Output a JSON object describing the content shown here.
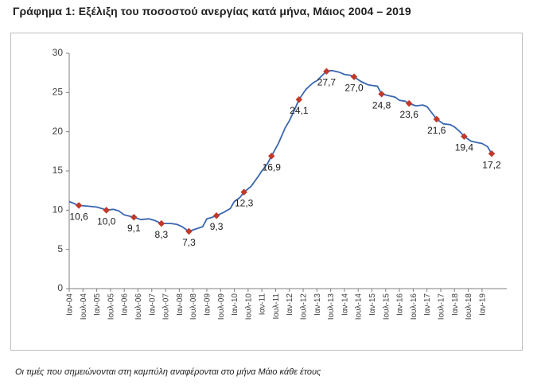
{
  "header": {
    "title": "Γράφημα 1: Εξέλιξη του ποσοστού ανεργίας κατά μήνα, Μάιος 2004 – 2019"
  },
  "footer": {
    "note": "Οι τιμές που σημειώνονται στη καμπύλη αναφέρονται στο μήνα Μάιο κάθε έτους"
  },
  "colors": {
    "line": "#3a66b0",
    "marker": "#c0392b",
    "axis": "#7f7f7f",
    "tick_text": "#404040"
  },
  "chart_data": {
    "type": "line",
    "title": "",
    "xlabel": "",
    "ylabel": "",
    "ylim": [
      0,
      30
    ],
    "yticks": [
      0,
      5,
      10,
      15,
      20,
      25,
      30
    ],
    "grid": false,
    "legend": "none",
    "x_start": "2004-01",
    "x_end": "2019-12",
    "x_tick_labels": [
      "Ιαν-04",
      "Ιουλ-04",
      "Ιαν-05",
      "Ιουλ-05",
      "Ιαν-06",
      "Ιουλ-06",
      "Ιαν-07",
      "Ιουλ-07",
      "Ιαν-08",
      "Ιουλ-08",
      "Ιαν-09",
      "Ιουλ-09",
      "Ιαν-10",
      "Ιουλ-10",
      "Ιαν-11",
      "Ιουλ-11",
      "Ιαν-12",
      "Ιουλ-12",
      "Ιαν-13",
      "Ιουλ-13",
      "Ιαν-14",
      "Ιουλ-14",
      "Ιαν-15",
      "Ιουλ-15",
      "Ιαν-16",
      "Ιουλ-16",
      "Ιαν-17",
      "Ιουλ-17",
      "Ιαν-18",
      "Ιουλ-18",
      "Ιαν-19"
    ],
    "series": [
      {
        "values": [
          [
            2004.0,
            11.1
          ],
          [
            2004.35,
            10.6
          ],
          [
            2004.7,
            10.5
          ],
          [
            2005.0,
            10.4
          ],
          [
            2005.2,
            10.2
          ],
          [
            2005.35,
            10.0
          ],
          [
            2005.6,
            10.1
          ],
          [
            2005.8,
            9.9
          ],
          [
            2006.0,
            9.4
          ],
          [
            2006.35,
            9.1
          ],
          [
            2006.6,
            8.8
          ],
          [
            2006.9,
            8.9
          ],
          [
            2007.1,
            8.7
          ],
          [
            2007.35,
            8.3
          ],
          [
            2007.7,
            8.3
          ],
          [
            2007.9,
            8.2
          ],
          [
            2008.1,
            7.9
          ],
          [
            2008.35,
            7.3
          ],
          [
            2008.6,
            7.6
          ],
          [
            2008.85,
            7.9
          ],
          [
            2009.0,
            8.9
          ],
          [
            2009.2,
            9.1
          ],
          [
            2009.35,
            9.3
          ],
          [
            2009.6,
            9.7
          ],
          [
            2009.85,
            10.2
          ],
          [
            2010.0,
            11.1
          ],
          [
            2010.2,
            11.6
          ],
          [
            2010.35,
            12.3
          ],
          [
            2010.6,
            13.0
          ],
          [
            2010.85,
            14.2
          ],
          [
            2011.0,
            15.0
          ],
          [
            2011.2,
            15.9
          ],
          [
            2011.35,
            16.9
          ],
          [
            2011.6,
            18.5
          ],
          [
            2011.85,
            20.5
          ],
          [
            2012.0,
            21.4
          ],
          [
            2012.2,
            22.9
          ],
          [
            2012.35,
            24.1
          ],
          [
            2012.6,
            25.4
          ],
          [
            2012.85,
            26.2
          ],
          [
            2013.0,
            26.5
          ],
          [
            2013.2,
            27.2
          ],
          [
            2013.35,
            27.7
          ],
          [
            2013.55,
            27.8
          ],
          [
            2013.8,
            27.6
          ],
          [
            2014.0,
            27.3
          ],
          [
            2014.2,
            27.2
          ],
          [
            2014.35,
            27.0
          ],
          [
            2014.6,
            26.4
          ],
          [
            2014.85,
            26.0
          ],
          [
            2015.0,
            25.9
          ],
          [
            2015.2,
            25.8
          ],
          [
            2015.35,
            24.8
          ],
          [
            2015.6,
            24.6
          ],
          [
            2015.85,
            24.4
          ],
          [
            2016.0,
            24.0
          ],
          [
            2016.2,
            23.9
          ],
          [
            2016.35,
            23.6
          ],
          [
            2016.6,
            23.3
          ],
          [
            2016.85,
            23.4
          ],
          [
            2017.0,
            23.2
          ],
          [
            2017.2,
            22.3
          ],
          [
            2017.35,
            21.6
          ],
          [
            2017.6,
            21.0
          ],
          [
            2017.85,
            20.9
          ],
          [
            2018.0,
            20.6
          ],
          [
            2018.2,
            20.0
          ],
          [
            2018.35,
            19.4
          ],
          [
            2018.6,
            18.8
          ],
          [
            2018.85,
            18.6
          ],
          [
            2019.0,
            18.5
          ],
          [
            2019.2,
            18.1
          ],
          [
            2019.35,
            17.2
          ]
        ]
      }
    ],
    "markers": [
      {
        "x": 2004.35,
        "y": 10.6,
        "label": "10,6"
      },
      {
        "x": 2005.35,
        "y": 10.0,
        "label": "10,0"
      },
      {
        "x": 2006.35,
        "y": 9.1,
        "label": "9,1"
      },
      {
        "x": 2007.35,
        "y": 8.3,
        "label": "8,3"
      },
      {
        "x": 2008.35,
        "y": 7.3,
        "label": "7,3"
      },
      {
        "x": 2009.35,
        "y": 9.3,
        "label": "9,3"
      },
      {
        "x": 2010.35,
        "y": 12.3,
        "label": "12,3"
      },
      {
        "x": 2011.35,
        "y": 16.9,
        "label": "16,9"
      },
      {
        "x": 2012.35,
        "y": 24.1,
        "label": "24,1"
      },
      {
        "x": 2013.35,
        "y": 27.7,
        "label": "27,7"
      },
      {
        "x": 2014.35,
        "y": 27.0,
        "label": "27,0"
      },
      {
        "x": 2015.35,
        "y": 24.8,
        "label": "24,8"
      },
      {
        "x": 2016.35,
        "y": 23.6,
        "label": "23,6"
      },
      {
        "x": 2017.35,
        "y": 21.6,
        "label": "21,6"
      },
      {
        "x": 2018.35,
        "y": 19.4,
        "label": "19,4"
      },
      {
        "x": 2019.35,
        "y": 17.2,
        "label": "17,2"
      }
    ]
  }
}
